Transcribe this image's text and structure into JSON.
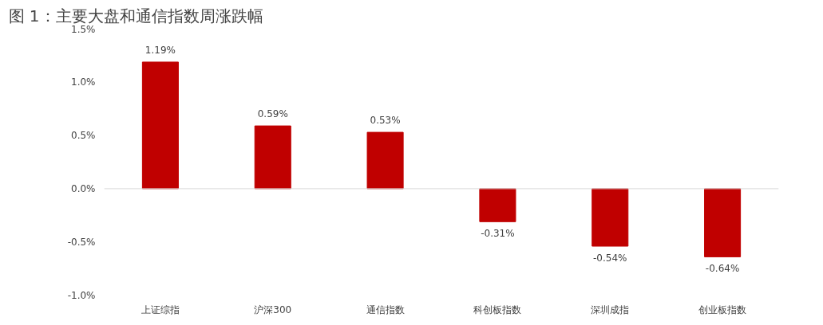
{
  "chart_data": {
    "type": "bar",
    "title": "图 1：主要大盘和通信指数周涨跌幅",
    "categories": [
      "上证综指",
      "沪深300",
      "通信指数",
      "科创板指数",
      "深圳成指",
      "创业板指数"
    ],
    "values": [
      1.19,
      0.59,
      0.53,
      -0.31,
      -0.54,
      -0.64
    ],
    "value_labels": [
      "1.19%",
      "0.59%",
      "0.53%",
      "-0.31%",
      "-0.54%",
      "-0.64%"
    ],
    "color": "#c00000",
    "ylim": [
      -1.0,
      1.5
    ],
    "yticks": [
      {
        "value": -1.0,
        "label": "-1.0%"
      },
      {
        "value": -0.5,
        "label": "-0.5%"
      },
      {
        "value": 0.0,
        "label": "0.0%"
      },
      {
        "value": 0.5,
        "label": "0.5%"
      },
      {
        "value": 1.0,
        "label": "1.0%"
      },
      {
        "value": 1.5,
        "label": "1.5%"
      }
    ],
    "ref_lines": [
      {
        "axis": "y",
        "value": 0,
        "color": "#d9d9d9"
      }
    ],
    "grid": false
  }
}
